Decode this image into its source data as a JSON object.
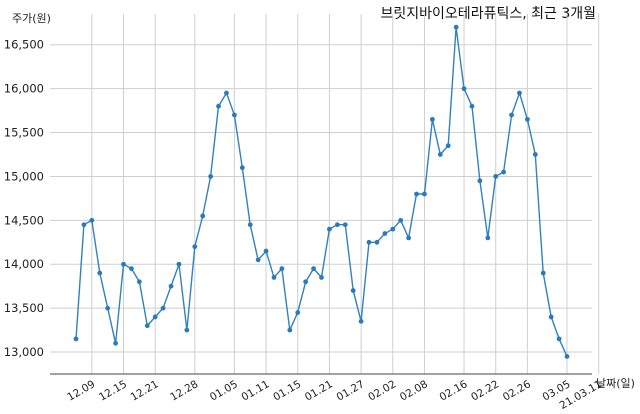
{
  "chart_data": {
    "type": "line",
    "title": "브릿지바이오테라퓨틱스, 최근 3개월",
    "ylabel": "주가(원)",
    "xlabel": "날짜(일)",
    "ylim": [
      12750,
      16850
    ],
    "yticks": [
      13000,
      13500,
      14000,
      14500,
      15000,
      15500,
      16000,
      16500
    ],
    "ytick_labels": [
      "13,000",
      "13,500",
      "14,000",
      "14,500",
      "15,000",
      "15,500",
      "16,000",
      "16,500"
    ],
    "xtick_labels": [
      "12.09",
      "12.15",
      "12.21",
      "12.28",
      "01.05",
      "01.11",
      "01.15",
      "01.21",
      "01.27",
      "02.02",
      "02.08",
      "02.16",
      "02.22",
      "02.26",
      "03.05",
      "21.03.11"
    ],
    "xtick_index": [
      2,
      6,
      10,
      15,
      20,
      24,
      28,
      32,
      36,
      40,
      44,
      49,
      53,
      57,
      62,
      66
    ],
    "grid": true,
    "values": [
      13150,
      14450,
      14500,
      13900,
      13500,
      13100,
      14000,
      13950,
      13800,
      13300,
      13400,
      13500,
      13750,
      14000,
      13250,
      14200,
      14550,
      15000,
      15800,
      15950,
      15700,
      15100,
      14450,
      14050,
      14150,
      13850,
      13950,
      13250,
      13450,
      13800,
      13950,
      13850,
      14400,
      14450,
      14450,
      13700,
      13350,
      14250,
      14250,
      14350,
      14400,
      14500,
      14300,
      14800,
      14800,
      15650,
      15250,
      15350,
      16700,
      16000,
      15800,
      14950,
      14300,
      15000,
      15050,
      15700,
      15950,
      15650,
      15250,
      13900,
      13400,
      13150,
      12950
    ]
  }
}
